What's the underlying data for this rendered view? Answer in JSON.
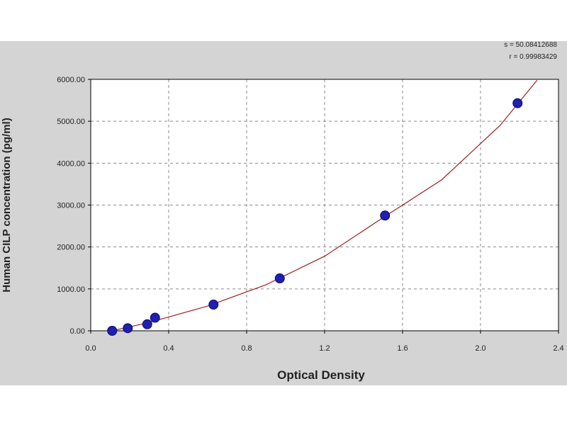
{
  "chart_data": {
    "type": "scatter",
    "xlabel": "Optical Density",
    "ylabel": "Human CILP concentration (pg/ml)",
    "xlim": [
      0.0,
      2.4
    ],
    "ylim": [
      0,
      6000
    ],
    "x_ticks": [
      "0.0",
      "0.4",
      "0.8",
      "1.2",
      "1.6",
      "2.0",
      "2.4"
    ],
    "y_ticks": [
      "0.00",
      "1000.00",
      "2000.00",
      "3000.00",
      "4000.00",
      "5000.00",
      "6000.00"
    ],
    "grid": true,
    "grid_style": "dashed",
    "series": [
      {
        "kind": "points",
        "color": "#1f1fb0",
        "points": [
          {
            "x": 0.11,
            "y": 0
          },
          {
            "x": 0.19,
            "y": 62
          },
          {
            "x": 0.29,
            "y": 156
          },
          {
            "x": 0.33,
            "y": 312
          },
          {
            "x": 0.63,
            "y": 625
          },
          {
            "x": 0.97,
            "y": 1250
          },
          {
            "x": 1.51,
            "y": 2750
          },
          {
            "x": 2.19,
            "y": 5430
          }
        ]
      },
      {
        "kind": "fit-curve",
        "color": "#a02020",
        "x": [
          0.09,
          0.3,
          0.6,
          0.9,
          1.2,
          1.5,
          1.8,
          2.1,
          2.29
        ],
        "y": [
          -20,
          200,
          590,
          1100,
          1780,
          2700,
          3600,
          4900,
          5980
        ]
      }
    ],
    "fit_stats": {
      "s": "s = 50.08412688",
      "r": "r = 0.99983429"
    }
  }
}
